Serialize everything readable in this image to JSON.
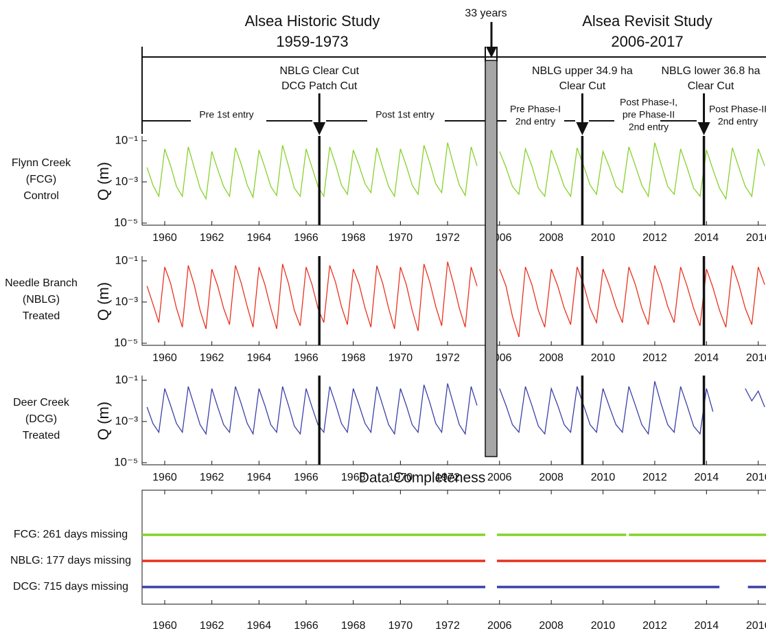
{
  "timeline": {
    "studies": [
      {
        "title": "Alsea Historic Study",
        "years": "1959-1973"
      },
      {
        "title": "Alsea Revisit Study",
        "years": "2006-2017"
      }
    ],
    "gap_label": "33 years",
    "phases": [
      [
        "Pre 1st entry"
      ],
      [
        "Post 1st entry"
      ],
      [
        "Pre Phase-I",
        "2nd entry"
      ],
      [
        "Post Phase-I,",
        "pre Phase-II",
        "2nd entry"
      ],
      [
        "Post Phase-II",
        "2nd entry"
      ]
    ]
  },
  "chart_data": {
    "type": "line",
    "ylabel": "Q (m)",
    "log_y": true,
    "xlim": [
      1959.04,
      2016.3
    ],
    "x_break": [
      1973.6,
      2005.9
    ],
    "xticks": [
      1960,
      1962,
      1964,
      1966,
      1968,
      1970,
      1972,
      2006,
      2008,
      2010,
      2012,
      2014,
      2016
    ],
    "ylim": [
      7.9e-06,
      0.17
    ],
    "yticks": [
      {
        "value": 0.1,
        "label": "10⁻¹"
      },
      {
        "value": 0.001,
        "label": "10⁻³"
      },
      {
        "value": 1e-05,
        "label": "10⁻⁵"
      }
    ],
    "events": [
      {
        "x": 1966.56,
        "labels": [
          "NBLG Clear Cut",
          "DCG Patch Cut"
        ],
        "colors": [
          "#e8311e",
          "#3a3fa6"
        ]
      },
      {
        "x": 2009.2,
        "labels": [
          "NBLG upper 34.9 ha",
          "Clear Cut"
        ],
        "colors": [
          "#e8311e",
          "#e8311e"
        ]
      },
      {
        "x": 2013.9,
        "labels": [
          "NBLG lower 36.8 ha",
          "Clear Cut"
        ],
        "colors": [
          "#e8311e",
          "#e8311e"
        ]
      }
    ],
    "x": [
      1959.25,
      1959.5,
      1959.75,
      1960,
      1960.25,
      1960.5,
      1960.75,
      1961,
      1961.25,
      1961.5,
      1961.75,
      1962,
      1962.25,
      1962.5,
      1962.75,
      1963,
      1963.25,
      1963.5,
      1963.75,
      1964,
      1964.25,
      1964.5,
      1964.75,
      1965,
      1965.25,
      1965.5,
      1965.75,
      1966,
      1966.25,
      1966.5,
      1966.75,
      1967,
      1967.25,
      1967.5,
      1967.75,
      1968,
      1968.25,
      1968.5,
      1968.75,
      1969,
      1969.25,
      1969.5,
      1969.75,
      1970,
      1970.25,
      1970.5,
      1970.75,
      1971,
      1971.25,
      1971.5,
      1971.75,
      1972,
      1972.25,
      1972.5,
      1972.75,
      1973,
      1973.25,
      2006,
      2006.25,
      2006.5,
      2006.75,
      2007,
      2007.25,
      2007.5,
      2007.75,
      2008,
      2008.25,
      2008.5,
      2008.75,
      2009,
      2009.25,
      2009.5,
      2009.75,
      2010,
      2010.25,
      2010.5,
      2010.75,
      2011,
      2011.25,
      2011.5,
      2011.75,
      2012,
      2012.25,
      2012.5,
      2012.75,
      2013,
      2013.25,
      2013.5,
      2013.75,
      2014,
      2014.25,
      2014.5,
      2014.75,
      2015,
      2015.25,
      2015.5,
      2015.75,
      2016,
      2016.25
    ],
    "series": [
      {
        "name": "FCG",
        "label": [
          "Flynn Creek",
          "(FCG)",
          "Control"
        ],
        "color": "#86d12c",
        "values": [
          0.005,
          0.0007,
          0.0002,
          0.04,
          0.006,
          0.0006,
          0.0002,
          0.05,
          0.005,
          0.0005,
          0.00015,
          0.03,
          0.004,
          0.0006,
          0.0002,
          0.045,
          0.007,
          0.0007,
          0.00018,
          0.035,
          0.005,
          0.0006,
          0.00022,
          0.06,
          0.006,
          0.0005,
          0.0002,
          0.04,
          0.005,
          0.0006,
          0.0002,
          0.05,
          0.007,
          0.0007,
          0.00025,
          0.035,
          0.006,
          0.0008,
          0.0003,
          0.045,
          0.005,
          0.0006,
          0.0002,
          0.04,
          0.006,
          0.0007,
          0.00025,
          0.06,
          0.008,
          0.0008,
          0.0003,
          0.08,
          0.007,
          0.0007,
          0.00022,
          0.05,
          0.006,
          0.03,
          0.005,
          0.0006,
          0.00025,
          0.04,
          0.006,
          0.0005,
          0.0002,
          0.035,
          0.005,
          0.0006,
          0.0002,
          0.045,
          0.006,
          0.0007,
          0.00025,
          0.03,
          0.005,
          0.0006,
          0.0003,
          0.05,
          0.006,
          0.0007,
          0.0002,
          0.08,
          0.007,
          0.0006,
          0.00025,
          0.04,
          0.005,
          0.0005,
          0.0002,
          0.035,
          0.004,
          0.0005,
          0.00015,
          0.045,
          0.005,
          0.0006,
          0.0002,
          0.04,
          0.006
        ]
      },
      {
        "name": "NBLG",
        "label": [
          "Needle Branch",
          "(NBLG)",
          "Treated"
        ],
        "color": "#e8311e",
        "values": [
          0.006,
          0.0008,
          0.0001,
          0.05,
          0.008,
          0.0005,
          6e-05,
          0.06,
          0.007,
          0.0004,
          5e-05,
          0.04,
          0.006,
          0.0005,
          8e-05,
          0.06,
          0.008,
          0.0006,
          6e-05,
          0.05,
          0.007,
          0.0005,
          5e-05,
          0.07,
          0.008,
          0.0004,
          7e-05,
          0.05,
          0.007,
          0.0005,
          0.0001,
          0.06,
          0.009,
          0.0006,
          8e-05,
          0.04,
          0.007,
          0.0005,
          6e-05,
          0.06,
          0.008,
          0.0005,
          5e-05,
          0.05,
          0.007,
          0.0004,
          4e-05,
          0.07,
          0.009,
          0.0006,
          7e-05,
          0.09,
          0.008,
          0.0005,
          6e-05,
          0.05,
          0.006,
          0.04,
          0.006,
          0.0002,
          2e-05,
          0.05,
          0.007,
          0.0004,
          6e-05,
          0.04,
          0.006,
          0.0005,
          8e-05,
          0.05,
          0.007,
          0.0005,
          0.0001,
          0.04,
          0.006,
          0.0006,
          0.0001,
          0.05,
          0.007,
          0.0005,
          8e-05,
          0.06,
          0.008,
          0.0006,
          0.0001,
          0.05,
          0.006,
          0.0005,
          7e-05,
          0.04,
          0.005,
          0.0004,
          6e-05,
          0.06,
          0.007,
          0.0005,
          8e-05,
          0.05,
          0.007
        ]
      },
      {
        "name": "DCG",
        "label": [
          "Deer Creek",
          "(DCG)",
          "Treated"
        ],
        "color": "#3a3fa6",
        "values": [
          0.005,
          0.0008,
          0.0003,
          0.04,
          0.006,
          0.0008,
          0.0003,
          0.05,
          0.006,
          0.0007,
          0.00025,
          0.04,
          0.005,
          0.0007,
          0.0003,
          0.05,
          0.007,
          0.0008,
          0.00025,
          0.04,
          0.006,
          0.0007,
          0.0003,
          0.05,
          0.006,
          0.0006,
          0.00025,
          0.04,
          0.005,
          0.0007,
          0.0003,
          0.05,
          0.007,
          0.0008,
          0.0003,
          0.04,
          0.006,
          0.0008,
          0.0003,
          0.05,
          0.006,
          0.0007,
          0.00025,
          0.04,
          0.006,
          0.0007,
          0.0003,
          0.06,
          0.008,
          0.0008,
          0.0003,
          0.07,
          0.007,
          0.0007,
          0.00025,
          0.05,
          0.006,
          0.04,
          0.006,
          0.0007,
          0.0003,
          0.05,
          0.006,
          0.0006,
          0.00025,
          0.04,
          0.006,
          0.0007,
          0.0003,
          0.05,
          0.006,
          0.0007,
          0.0003,
          0.04,
          0.005,
          0.0007,
          0.0003,
          0.05,
          0.006,
          0.0007,
          0.00025,
          0.09,
          0.007,
          0.0007,
          0.0003,
          0.05,
          0.006,
          0.0006,
          0.00025,
          0.04,
          0.003,
          null,
          null,
          null,
          null,
          0.04,
          0.01,
          0.03,
          0.005
        ]
      }
    ],
    "completeness": {
      "title": "Data Completeness",
      "series": [
        {
          "name": "FCG: 261 days missing",
          "color": "#86d12c",
          "segments": [
            [
              1959.04,
              1973.6
            ],
            [
              2005.9,
              2010.9
            ],
            [
              2011.0,
              2016.3
            ]
          ]
        },
        {
          "name": "NBLG: 177 days missing",
          "color": "#e8311e",
          "segments": [
            [
              1959.04,
              1973.6
            ],
            [
              2005.9,
              2016.3
            ]
          ]
        },
        {
          "name": "DCG: 715 days missing",
          "color": "#3a3fa6",
          "segments": [
            [
              1959.04,
              1973.6
            ],
            [
              2005.9,
              2014.5
            ],
            [
              2015.6,
              2016.3
            ]
          ]
        }
      ]
    }
  }
}
